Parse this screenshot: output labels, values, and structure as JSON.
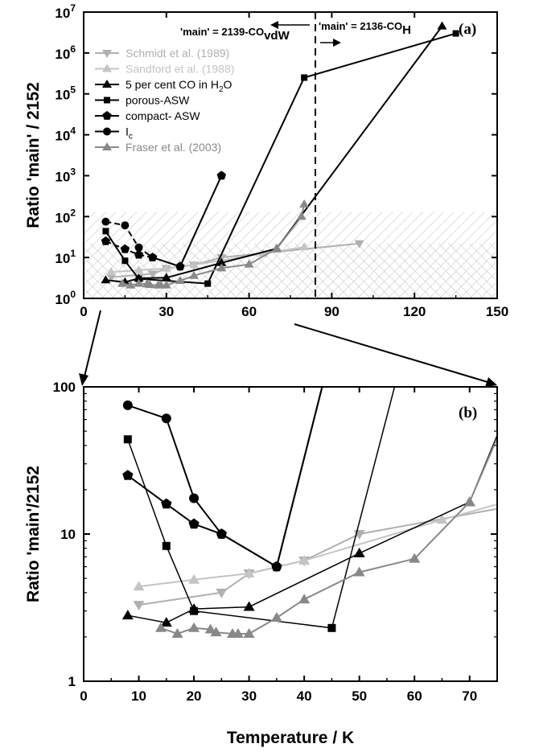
{
  "chart_data": [
    {
      "panel": "(a)",
      "type": "line",
      "ylabel": "Ratio 'main' / 2152",
      "xlim": [
        0,
        150
      ],
      "ylim": [
        1,
        10000000
      ],
      "yscale": "log",
      "xticks": [
        "0",
        "30",
        "60",
        "90",
        "120",
        "150"
      ],
      "yticks": [
        "10^0",
        "10^1",
        "10^2",
        "10^3",
        "10^4",
        "10^5",
        "10^6",
        "10^7"
      ],
      "legend_position": "upper-left",
      "series": [
        {
          "name": "Schmidt et al. (1989)",
          "marker": "triangle-down",
          "color": "#b0b0b0",
          "x": [
            10,
            25,
            30,
            40,
            50,
            100
          ],
          "y": [
            3.3,
            4.0,
            5.4,
            6.6,
            10,
            22
          ]
        },
        {
          "name": "Sandford et al. (1988)",
          "marker": "triangle-up",
          "color": "#c4c4c4",
          "x": [
            10,
            20,
            30,
            40,
            65,
            80
          ],
          "y": [
            4.4,
            4.9,
            5.4,
            6.6,
            12.5,
            18
          ]
        },
        {
          "name": "5 per cent CO in H2O",
          "marker": "triangle-up",
          "color": "#000000",
          "x": [
            8,
            15,
            20,
            30,
            50,
            70,
            130
          ],
          "y": [
            2.8,
            2.5,
            3.1,
            3.2,
            7.4,
            16.5,
            4500000
          ]
        },
        {
          "name": "porous-ASW",
          "marker": "square",
          "color": "#000000",
          "x": [
            8,
            15,
            20,
            45,
            80,
            135
          ],
          "y": [
            44,
            8.3,
            3.0,
            2.3,
            250000,
            3000000
          ]
        },
        {
          "name": "compact- ASW",
          "marker": "pentagon",
          "color": "#000000",
          "x": [
            8,
            15,
            20,
            25,
            35,
            50
          ],
          "y": [
            25,
            16,
            11.7,
            10,
            6,
            1000
          ]
        },
        {
          "name": "Ic",
          "marker": "circle",
          "color": "#000000",
          "x": [
            8,
            15,
            20,
            25,
            35,
            50
          ],
          "y": [
            75,
            61,
            17.5,
            10,
            6,
            1000
          ]
        },
        {
          "name": "Fraser et al. (2003)",
          "marker": "triangle-up",
          "color": "#888888",
          "x": [
            14,
            17,
            20,
            23,
            24,
            27,
            28,
            30,
            35,
            40,
            50,
            60,
            70,
            79,
            80
          ],
          "y": [
            2.3,
            2.1,
            2.3,
            2.25,
            2.15,
            2.1,
            2.1,
            2.1,
            2.7,
            3.6,
            5.5,
            6.8,
            16.5,
            100,
            200
          ]
        }
      ],
      "annotations": [
        "'main' = 2139-COvdW",
        "'main' = 2136-COH"
      ],
      "vline_x": 83
    },
    {
      "panel": "(b)",
      "type": "line",
      "xlabel": "Temperature / K",
      "ylabel": "Ratio 'main'/2152",
      "xlim": [
        0,
        75
      ],
      "ylim": [
        1,
        100
      ],
      "yscale": "log",
      "xticks": [
        "0",
        "10",
        "20",
        "30",
        "40",
        "50",
        "60",
        "70"
      ],
      "yticks": [
        "1",
        "10",
        "100"
      ]
    }
  ],
  "legend": {
    "entries": [
      {
        "label": "Schmidt et al. (1989)",
        "color": "#b0b0b0",
        "marker": "triangle-down"
      },
      {
        "label": "Sandford et al. (1988)",
        "color": "#c4c4c4",
        "marker": "triangle-up"
      },
      {
        "label": "5 per cent CO in H",
        "sub": "2",
        "suffix": "O",
        "color": "#000000",
        "marker": "triangle-up"
      },
      {
        "label": "porous-ASW",
        "color": "#000000",
        "marker": "square"
      },
      {
        "label": "compact- ASW",
        "color": "#000000",
        "marker": "pentagon"
      },
      {
        "label": "I",
        "sub": "c",
        "suffix": "",
        "color": "#000000",
        "marker": "circle"
      },
      {
        "label": "Fraser et al. (2003)",
        "color": "#888888",
        "marker": "triangle-up"
      }
    ]
  },
  "annotations": {
    "left_main": "'main' = 2139-CO",
    "left_sub": "vdW",
    "right_main": "'main' = 2136-CO",
    "right_sub": "H"
  },
  "labels": {
    "panel_a": "(a)",
    "panel_b": "(b)",
    "ylabel_a": "Ratio 'main' / 2152",
    "ylabel_b": "Ratio 'main'/2152",
    "xlabel_b": "Temperature / K"
  },
  "ticks": {
    "a_x": [
      "0",
      "30",
      "60",
      "90",
      "120",
      "150"
    ],
    "a_y_exp": [
      "0",
      "1",
      "2",
      "3",
      "4",
      "5",
      "6",
      "7"
    ],
    "b_x": [
      "0",
      "10",
      "20",
      "30",
      "40",
      "50",
      "60",
      "70"
    ],
    "b_y": [
      "1",
      "10",
      "100"
    ]
  }
}
